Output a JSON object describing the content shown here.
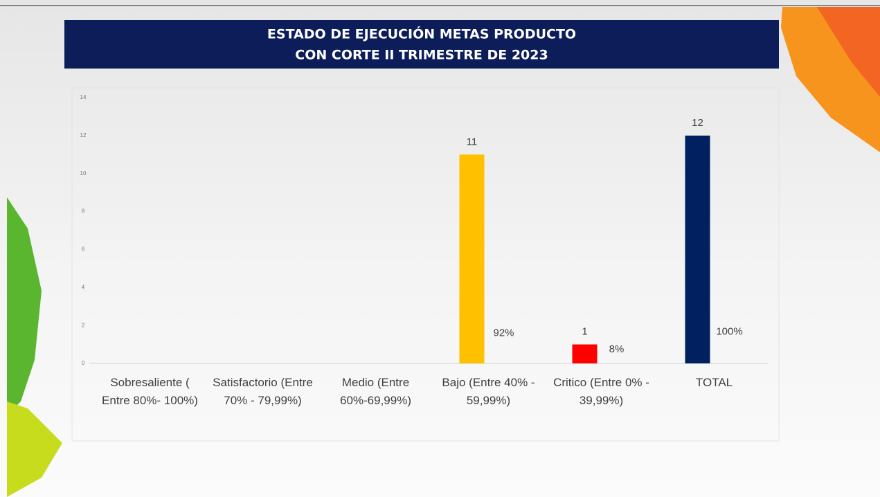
{
  "chart_data": {
    "type": "bar",
    "title": [
      "ESTADO DE EJECUCIÓN METAS PRODUCTO",
      "CON CORTE II TRIMESTRE DE 2023"
    ],
    "categories": [
      "Sobresaliente ( Entre 80%- 100%)",
      "Satisfactorio (Entre 70% - 79,99%)",
      "Medio (Entre 60%-69,99%)",
      "Bajo (Entre 40% - 59,99%)",
      "Critico (Entre 0% - 39,99%)",
      "TOTAL"
    ],
    "series": [
      {
        "values": [
          null,
          null,
          null,
          11,
          1,
          12
        ],
        "colors": [
          null,
          null,
          null,
          "#ffc000",
          "#ff0000",
          "#002060"
        ]
      },
      {
        "values": [
          null,
          null,
          null,
          0.92,
          0.08,
          1
        ],
        "value_labels": [
          null,
          null,
          null,
          "92%",
          "8%",
          "100%"
        ],
        "color": "none"
      }
    ],
    "ylim": [
      0,
      14
    ],
    "yticks": [
      0,
      2,
      4,
      6,
      8,
      10,
      12,
      14
    ],
    "grid": false
  }
}
